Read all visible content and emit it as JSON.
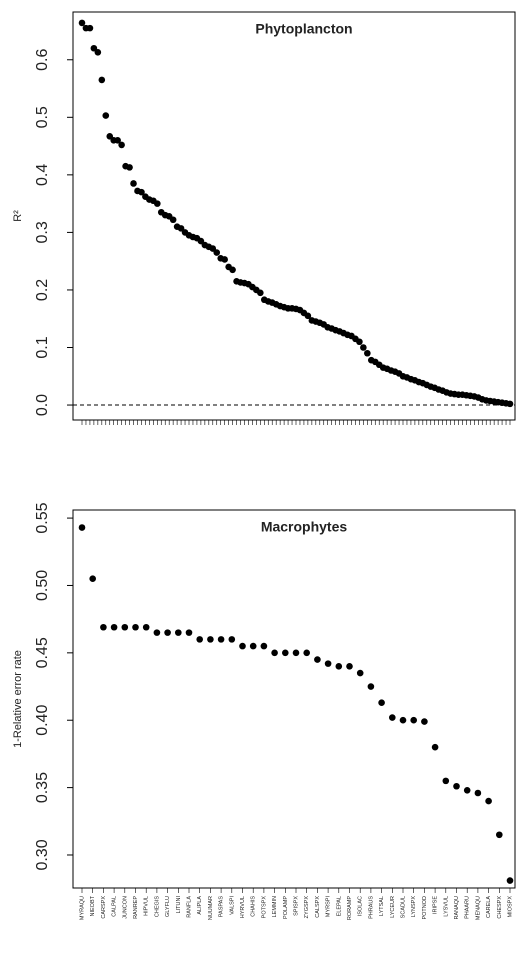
{
  "chart_data": [
    {
      "type": "scatter",
      "title": "Phytoplancton",
      "y_label": "R²",
      "values": [
        0.664,
        0.655,
        0.655,
        0.62,
        0.613,
        0.565,
        0.503,
        0.467,
        0.46,
        0.46,
        0.452,
        0.415,
        0.413,
        0.385,
        0.372,
        0.37,
        0.362,
        0.357,
        0.355,
        0.35,
        0.335,
        0.33,
        0.328,
        0.322,
        0.31,
        0.307,
        0.3,
        0.295,
        0.292,
        0.29,
        0.285,
        0.278,
        0.275,
        0.272,
        0.265,
        0.255,
        0.253,
        0.24,
        0.235,
        0.215,
        0.213,
        0.212,
        0.21,
        0.205,
        0.2,
        0.195,
        0.183,
        0.18,
        0.178,
        0.175,
        0.172,
        0.17,
        0.168,
        0.168,
        0.167,
        0.165,
        0.16,
        0.155,
        0.147,
        0.145,
        0.143,
        0.14,
        0.135,
        0.133,
        0.13,
        0.128,
        0.125,
        0.122,
        0.12,
        0.115,
        0.11,
        0.1,
        0.09,
        0.078,
        0.075,
        0.07,
        0.065,
        0.063,
        0.06,
        0.058,
        0.055,
        0.05,
        0.048,
        0.045,
        0.043,
        0.04,
        0.038,
        0.035,
        0.032,
        0.03,
        0.027,
        0.025,
        0.022,
        0.02,
        0.019,
        0.018,
        0.018,
        0.017,
        0.016,
        0.015,
        0.013,
        0.01,
        0.008,
        0.007,
        0.006,
        0.005,
        0.004,
        0.003,
        0.002
      ],
      "color": "#000000",
      "ylim": [
        -0.026,
        0.683
      ],
      "yticks": [
        {
          "value": 0,
          "label": "0.0"
        },
        0.1,
        0.2,
        0.3,
        0.4,
        0.5,
        0.6
      ],
      "hline": 0
    },
    {
      "type": "scatter",
      "title": "Macrophytes",
      "y_label": "1-Relative error rate",
      "categories": [
        "MYRAQU",
        "NIEOBT",
        "CARSPX",
        "CALPAL",
        "JUNCON",
        "RANREP",
        "HIPVUL",
        "CHEGIS",
        "GLYFLU",
        "LITUNI",
        "RANFLA",
        "ALIPLA",
        "NUUMAR",
        "PASPAS",
        "VALSPI",
        "HYRVUL",
        "CHAHIS",
        "POTSPX",
        "LEMMIN",
        "POLAMP",
        "SPISPX",
        "ZYGSPX",
        "CALSPX",
        "MYRSPI",
        "ELEPAL",
        "RORAMP",
        "ISOLAC",
        "PHRAUS",
        "LYTSAL",
        "LYCEUR",
        "SCADUL",
        "LYNSPX",
        "POTNOD",
        "IRIPSE",
        "LYSVUL",
        "RANAQU",
        "PHAARU",
        "MENAQU",
        "CARELA",
        "CHESPX",
        "MIOSPX"
      ],
      "values": [
        0.543,
        0.505,
        0.469,
        0.469,
        0.469,
        0.469,
        0.469,
        0.465,
        0.465,
        0.465,
        0.465,
        0.46,
        0.46,
        0.46,
        0.46,
        0.455,
        0.455,
        0.455,
        0.45,
        0.45,
        0.45,
        0.45,
        0.445,
        0.442,
        0.44,
        0.44,
        0.435,
        0.425,
        0.413,
        0.402,
        0.4,
        0.4,
        0.399,
        0.38,
        0.355,
        0.351,
        0.348,
        0.346,
        0.34,
        0.315,
        0.281
      ],
      "color": "#000000",
      "ylim": [
        0.2755,
        0.556
      ],
      "yticks": [
        {
          "value": 0.3,
          "label": "0.30"
        },
        0.35,
        {
          "value": 0.4,
          "label": "0.40"
        },
        0.45,
        {
          "value": 0.5,
          "label": "0.50"
        },
        0.55
      ]
    }
  ]
}
